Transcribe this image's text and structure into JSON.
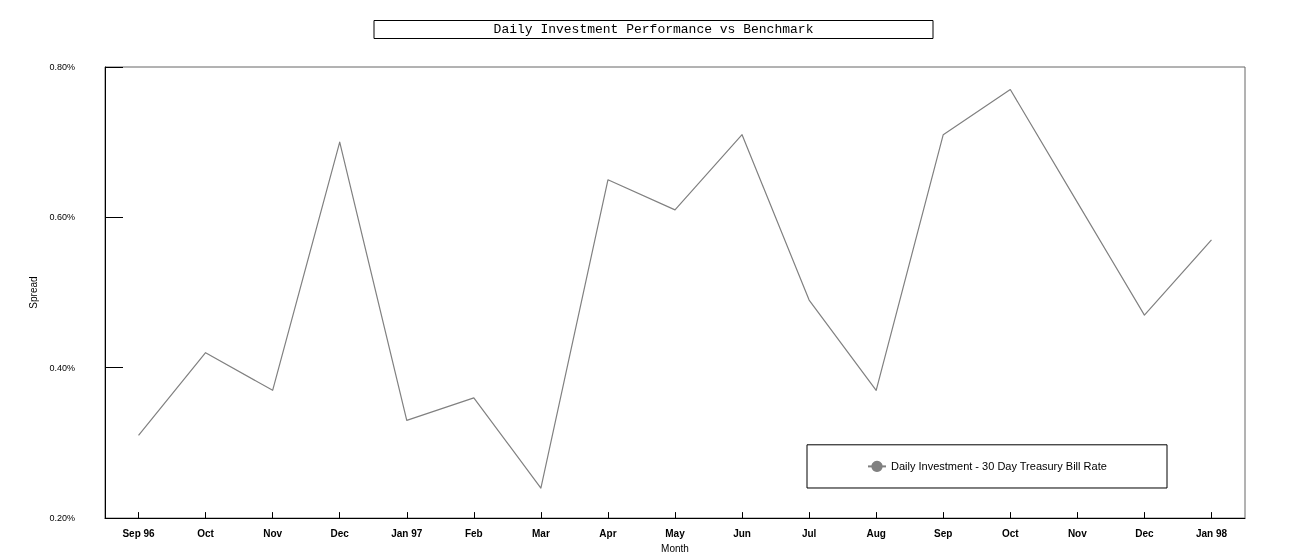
{
  "chart_data": {
    "type": "line",
    "title": "Daily Investment Performance vs Benchmark",
    "xlabel": "Month",
    "ylabel": "Spread",
    "categories": [
      "Sep 96",
      "Oct",
      "Nov",
      "Dec",
      "Jan 97",
      "Feb",
      "Mar",
      "Apr",
      "May",
      "Jun",
      "Jul",
      "Aug",
      "Sep",
      "Oct",
      "Nov",
      "Dec",
      "Jan 98"
    ],
    "series": [
      {
        "name": "Daily Investment - 30 Day Treasury Bill Rate",
        "color": "#808080",
        "values": [
          0.31,
          0.42,
          0.37,
          0.7,
          0.33,
          0.36,
          0.24,
          0.65,
          0.61,
          0.71,
          0.49,
          0.37,
          0.71,
          0.77,
          0.62,
          0.47,
          0.57
        ]
      }
    ],
    "ylim": [
      0.2,
      0.8
    ],
    "yticks": [
      {
        "value": 0.2,
        "label": "0.20%"
      },
      {
        "value": 0.4,
        "label": "0.40%"
      },
      {
        "value": 0.6,
        "label": "0.60%"
      },
      {
        "value": 0.8,
        "label": "0.80%"
      }
    ],
    "grid": false,
    "legend": "bottom right",
    "marker": "none",
    "line_style": "solid"
  }
}
